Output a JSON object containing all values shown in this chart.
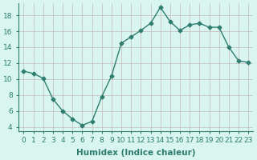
{
  "x": [
    0,
    1,
    2,
    3,
    4,
    5,
    6,
    7,
    8,
    9,
    10,
    11,
    12,
    13,
    14,
    15,
    16,
    17,
    18,
    19,
    20,
    21,
    22,
    23
  ],
  "y": [
    11,
    10.7,
    10.1,
    7.5,
    6.0,
    5.0,
    4.2,
    4.7,
    7.8,
    10.4,
    14.5,
    15.3,
    16.1,
    17.0,
    19.0,
    17.2,
    16.1,
    16.8,
    17.0,
    16.5,
    16.5,
    14.0,
    12.3,
    12.1
  ],
  "line_color": "#2e7d6e",
  "marker": "D",
  "marker_size": 2.5,
  "bg_color": "#d8f5f0",
  "grid_color": "#c8b8b8",
  "xlabel": "Humidex (Indice chaleur)",
  "xlim": [
    -0.5,
    23.5
  ],
  "ylim": [
    3.5,
    19.5
  ],
  "yticks": [
    4,
    6,
    8,
    10,
    12,
    14,
    16,
    18
  ],
  "xtick_labels": [
    "0",
    "1",
    "2",
    "3",
    "4",
    "5",
    "6",
    "7",
    "8",
    "9",
    "10",
    "11",
    "12",
    "13",
    "14",
    "15",
    "16",
    "17",
    "18",
    "19",
    "20",
    "21",
    "22",
    "23"
  ],
  "xlabel_fontsize": 7.5,
  "tick_fontsize": 6.5,
  "line_width": 1.0
}
